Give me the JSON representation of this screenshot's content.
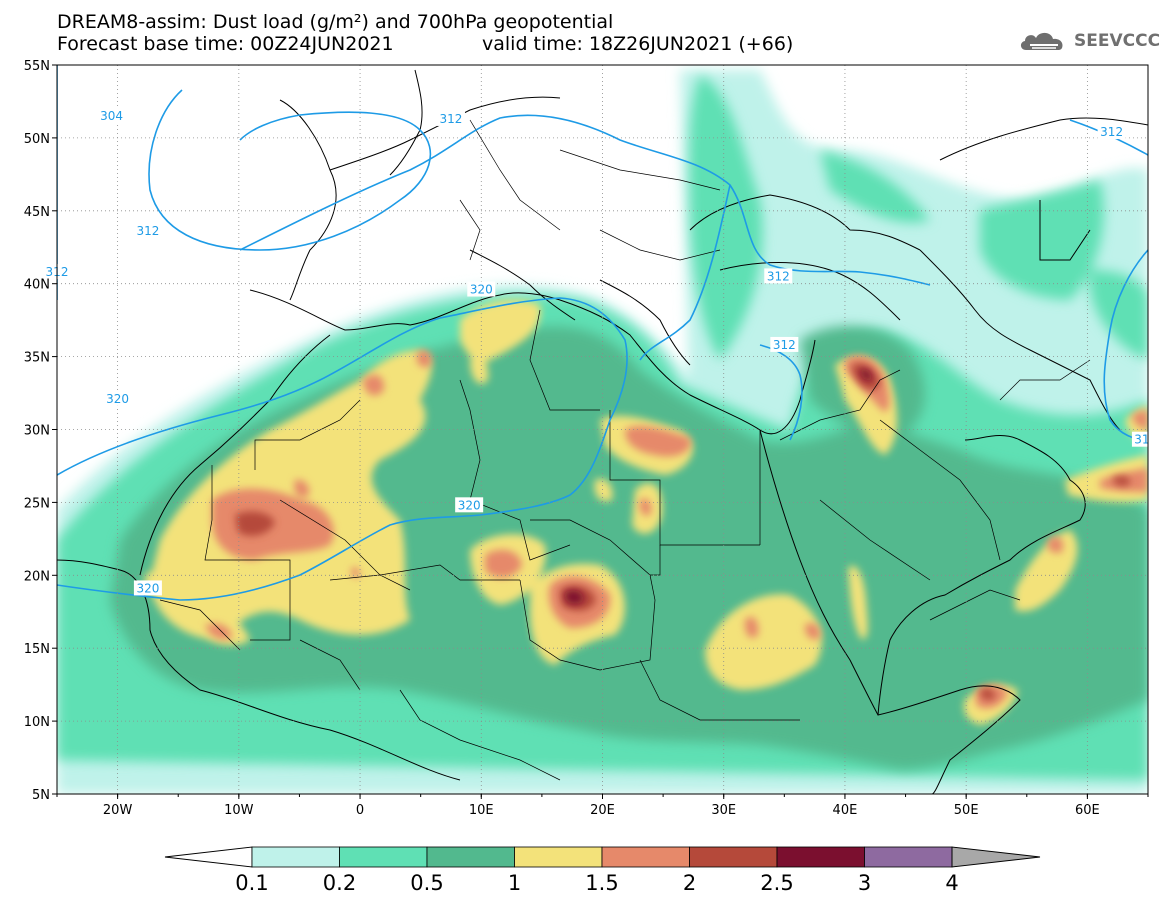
{
  "header": {
    "title_line1": "DREAM8-assim: Dust load (g/m²) and 700hPa geopotential",
    "title_line2": "Forecast base time: 00Z24JUN2021",
    "valid_time": "valid time: 18Z26JUN2021 (+66)"
  },
  "logo": {
    "text": "SEEVCCC",
    "icon": "cloud-icon"
  },
  "map": {
    "lon_range": [
      -25,
      65
    ],
    "lat_range": [
      5,
      55
    ],
    "lat_labels": [
      "5N",
      "10N",
      "15N",
      "20N",
      "25N",
      "30N",
      "35N",
      "40N",
      "45N",
      "50N",
      "55N"
    ],
    "lon_labels": [
      "20W",
      "10W",
      "0",
      "10E",
      "20E",
      "30E",
      "40E",
      "50E",
      "60E"
    ],
    "contour_labels": [
      {
        "text": "304",
        "lon": -20.5,
        "lat": 51.5
      },
      {
        "text": "312",
        "lon": -17.5,
        "lat": 43.6
      },
      {
        "text": "312",
        "lon": -25,
        "lat": 40.8
      },
      {
        "text": "312",
        "lon": 7.5,
        "lat": 51.3
      },
      {
        "text": "312",
        "lon": 34.5,
        "lat": 40.5
      },
      {
        "text": "312",
        "lon": 35,
        "lat": 35.8
      },
      {
        "text": "312",
        "lon": 62,
        "lat": 50.4
      },
      {
        "text": "320",
        "lon": 10,
        "lat": 39.6
      },
      {
        "text": "320",
        "lon": -20,
        "lat": 32.1
      },
      {
        "text": "320",
        "lon": 9,
        "lat": 24.8
      },
      {
        "text": "320",
        "lon": -17.5,
        "lat": 19.1
      },
      {
        "text": "31",
        "lon": 64.5,
        "lat": 29.3
      }
    ]
  },
  "colorbar": {
    "labels": [
      "0.1",
      "0.2",
      "0.5",
      "1",
      "1.5",
      "2",
      "2.5",
      "3",
      "4"
    ],
    "colors": [
      "#bff2ea",
      "#5fe0b4",
      "#52b98e",
      "#f3e27a",
      "#e6896a",
      "#b5493a",
      "#7b0f2f",
      "#8e6aa0"
    ],
    "over_color": "#a8a8a8"
  },
  "colors": {
    "c01": "#bff2ea",
    "c02": "#5fe0b4",
    "c05": "#52b98e",
    "c1": "#f3e27a",
    "c15": "#e6896a",
    "c2": "#b5493a",
    "c25": "#7b0f2f",
    "contour": "#1e9be6"
  }
}
